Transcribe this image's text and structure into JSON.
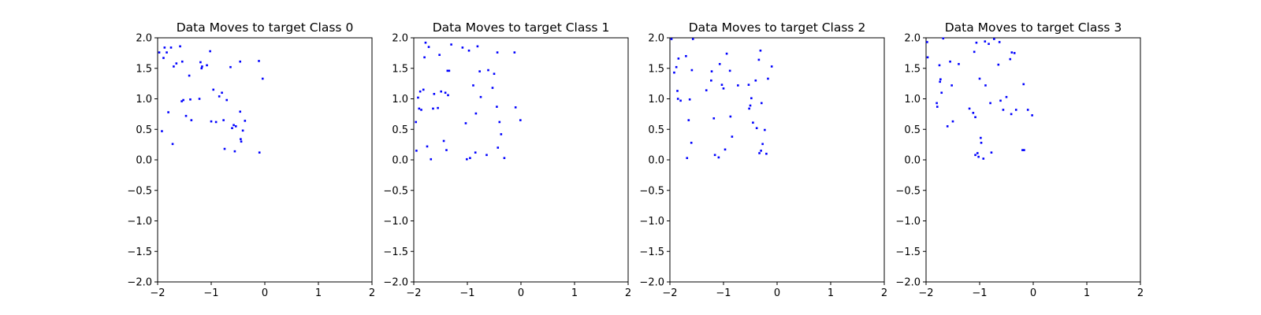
{
  "figure": {
    "point_color": "#0000ff",
    "axis_color": "#000000",
    "background": "#ffffff"
  },
  "chart_data": [
    {
      "type": "scatter",
      "title": "Data Moves to target Class 0",
      "xlabel": "",
      "ylabel": "",
      "xlim": [
        -2,
        2
      ],
      "ylim": [
        -2,
        2
      ],
      "xticks": [
        "−2",
        "−1",
        "0",
        "1",
        "2"
      ],
      "yticks": [
        "2.0",
        "1.5",
        "1.0",
        "0.5",
        "0.0",
        "−0.5",
        "−1.0",
        "−1.5",
        "−2.0"
      ],
      "grid": false,
      "points": [
        [
          -1.97,
          1.76
        ],
        [
          -1.92,
          0.47
        ],
        [
          -1.89,
          1.67
        ],
        [
          -1.87,
          1.84
        ],
        [
          -1.83,
          1.76
        ],
        [
          -1.8,
          0.78
        ],
        [
          -1.75,
          1.84
        ],
        [
          -1.72,
          0.26
        ],
        [
          -1.7,
          1.53
        ],
        [
          -1.65,
          1.58
        ],
        [
          -1.58,
          1.86
        ],
        [
          -1.55,
          0.96
        ],
        [
          -1.54,
          1.61
        ],
        [
          -1.52,
          0.98
        ],
        [
          -1.47,
          0.72
        ],
        [
          -1.41,
          1.38
        ],
        [
          -1.39,
          0.99
        ],
        [
          -1.37,
          0.65
        ],
        [
          -1.22,
          1.0
        ],
        [
          -1.2,
          1.6
        ],
        [
          -1.18,
          1.5
        ],
        [
          -1.17,
          1.53
        ],
        [
          -1.08,
          1.55
        ],
        [
          -1.02,
          1.78
        ],
        [
          -1.0,
          0.63
        ],
        [
          -0.96,
          1.15
        ],
        [
          -0.91,
          0.62
        ],
        [
          -0.85,
          1.04
        ],
        [
          -0.8,
          1.1
        ],
        [
          -0.77,
          0.65
        ],
        [
          -0.75,
          0.18
        ],
        [
          -0.71,
          0.98
        ],
        [
          -0.64,
          1.52
        ],
        [
          -0.61,
          0.52
        ],
        [
          -0.58,
          0.57
        ],
        [
          -0.56,
          0.14
        ],
        [
          -0.54,
          0.55
        ],
        [
          -0.46,
          1.61
        ],
        [
          -0.46,
          0.79
        ],
        [
          -0.45,
          0.34
        ],
        [
          -0.44,
          0.3
        ],
        [
          -0.41,
          0.48
        ],
        [
          -0.37,
          0.64
        ],
        [
          -0.11,
          1.62
        ],
        [
          -0.1,
          0.12
        ],
        [
          -0.04,
          1.33
        ]
      ]
    },
    {
      "type": "scatter",
      "title": "Data Moves to target Class 1",
      "xlabel": "",
      "ylabel": "",
      "xlim": [
        -2,
        2
      ],
      "ylim": [
        -2,
        2
      ],
      "xticks": [
        "−2",
        "−1",
        "0",
        "1",
        "2"
      ],
      "yticks": [
        "2.0",
        "1.5",
        "1.0",
        "0.5",
        "0.0",
        "−0.5",
        "−1.0",
        "−1.5",
        "−2.0"
      ],
      "grid": false,
      "points": [
        [
          -1.96,
          0.62
        ],
        [
          -1.95,
          0.15
        ],
        [
          -1.92,
          1.02
        ],
        [
          -1.9,
          0.84
        ],
        [
          -1.88,
          1.12
        ],
        [
          -1.86,
          0.82
        ],
        [
          -1.82,
          1.15
        ],
        [
          -1.8,
          1.68
        ],
        [
          -1.78,
          1.92
        ],
        [
          -1.75,
          0.22
        ],
        [
          -1.72,
          1.85
        ],
        [
          -1.68,
          0.01
        ],
        [
          -1.64,
          0.84
        ],
        [
          -1.62,
          1.08
        ],
        [
          -1.55,
          0.85
        ],
        [
          -1.52,
          1.72
        ],
        [
          -1.49,
          1.12
        ],
        [
          -1.44,
          0.31
        ],
        [
          -1.41,
          1.1
        ],
        [
          -1.39,
          0.16
        ],
        [
          -1.37,
          1.46
        ],
        [
          -1.36,
          1.06
        ],
        [
          -1.34,
          1.46
        ],
        [
          -1.3,
          1.89
        ],
        [
          -1.09,
          1.84
        ],
        [
          -1.03,
          0.6
        ],
        [
          -1.01,
          0.01
        ],
        [
          -0.97,
          1.79
        ],
        [
          -0.95,
          0.03
        ],
        [
          -0.89,
          1.22
        ],
        [
          -0.85,
          0.12
        ],
        [
          -0.84,
          0.76
        ],
        [
          -0.81,
          1.86
        ],
        [
          -0.77,
          1.45
        ],
        [
          -0.75,
          1.03
        ],
        [
          -0.64,
          0.08
        ],
        [
          -0.61,
          1.47
        ],
        [
          -0.53,
          1.18
        ],
        [
          -0.5,
          1.41
        ],
        [
          -0.45,
          0.87
        ],
        [
          -0.44,
          1.76
        ],
        [
          -0.43,
          0.2
        ],
        [
          -0.4,
          0.62
        ],
        [
          -0.37,
          0.42
        ],
        [
          -0.31,
          0.03
        ],
        [
          -0.1,
          0.86
        ],
        [
          -0.12,
          1.76
        ],
        [
          -0.01,
          0.65
        ]
      ]
    },
    {
      "type": "scatter",
      "title": "Data Moves to target Class 2",
      "xlabel": "",
      "ylabel": "",
      "xlim": [
        -2,
        2
      ],
      "ylim": [
        -2,
        2
      ],
      "xticks": [
        "−2",
        "−1",
        "0",
        "1",
        "2"
      ],
      "yticks": [
        "2.0",
        "1.5",
        "1.0",
        "0.5",
        "0.0",
        "−0.5",
        "−1.0",
        "−1.5",
        "−2.0"
      ],
      "grid": false,
      "points": [
        [
          -1.97,
          1.98
        ],
        [
          -1.92,
          1.43
        ],
        [
          -1.88,
          1.52
        ],
        [
          -1.86,
          1.13
        ],
        [
          -1.85,
          1.0
        ],
        [
          -1.84,
          1.66
        ],
        [
          -1.8,
          0.97
        ],
        [
          -1.7,
          1.7
        ],
        [
          -1.68,
          0.03
        ],
        [
          -1.65,
          0.65
        ],
        [
          -1.63,
          0.99
        ],
        [
          -1.6,
          0.28
        ],
        [
          -1.59,
          1.47
        ],
        [
          -1.57,
          1.98
        ],
        [
          -1.32,
          1.14
        ],
        [
          -1.23,
          1.3
        ],
        [
          -1.22,
          1.45
        ],
        [
          -1.18,
          0.68
        ],
        [
          -1.16,
          0.08
        ],
        [
          -1.09,
          0.04
        ],
        [
          -1.07,
          1.57
        ],
        [
          -1.03,
          1.23
        ],
        [
          -1.0,
          1.17
        ],
        [
          -0.97,
          0.17
        ],
        [
          -0.94,
          1.74
        ],
        [
          -0.88,
          1.46
        ],
        [
          -0.87,
          0.71
        ],
        [
          -0.84,
          0.38
        ],
        [
          -0.73,
          1.22
        ],
        [
          -0.53,
          1.23
        ],
        [
          -0.52,
          0.84
        ],
        [
          -0.5,
          0.89
        ],
        [
          -0.48,
          1.01
        ],
        [
          -0.45,
          0.61
        ],
        [
          -0.4,
          1.3
        ],
        [
          -0.38,
          0.52
        ],
        [
          -0.34,
          1.64
        ],
        [
          -0.33,
          0.11
        ],
        [
          -0.31,
          1.79
        ],
        [
          -0.3,
          0.15
        ],
        [
          -0.29,
          0.93
        ],
        [
          -0.27,
          0.26
        ],
        [
          -0.23,
          0.49
        ],
        [
          -0.2,
          0.1
        ],
        [
          -0.17,
          1.33
        ],
        [
          -0.1,
          1.53
        ]
      ]
    },
    {
      "type": "scatter",
      "title": "Data Moves to target Class 3",
      "xlabel": "",
      "ylabel": "",
      "xlim": [
        -2,
        2
      ],
      "ylim": [
        -2,
        2
      ],
      "xticks": [
        "−2",
        "−1",
        "0",
        "1",
        "2"
      ],
      "yticks": [
        "2.0",
        "1.5",
        "1.0",
        "0.5",
        "0.0",
        "−0.5",
        "−1.0",
        "−1.5",
        "−2.0"
      ],
      "grid": false,
      "points": [
        [
          -1.98,
          1.93
        ],
        [
          -1.97,
          1.68
        ],
        [
          -1.8,
          0.93
        ],
        [
          -1.79,
          0.87
        ],
        [
          -1.75,
          1.55
        ],
        [
          -1.74,
          1.28
        ],
        [
          -1.73,
          1.32
        ],
        [
          -1.71,
          1.1
        ],
        [
          -1.68,
          1.99
        ],
        [
          -1.6,
          0.55
        ],
        [
          -1.55,
          1.61
        ],
        [
          -1.52,
          1.22
        ],
        [
          -1.5,
          0.63
        ],
        [
          -1.39,
          1.57
        ],
        [
          -1.19,
          0.84
        ],
        [
          -1.12,
          0.77
        ],
        [
          -1.1,
          1.77
        ],
        [
          -1.08,
          0.7
        ],
        [
          -1.08,
          0.08
        ],
        [
          -1.06,
          1.92
        ],
        [
          -1.04,
          0.11
        ],
        [
          -1.02,
          0.05
        ],
        [
          -1.0,
          1.33
        ],
        [
          -0.98,
          0.36
        ],
        [
          -0.97,
          0.28
        ],
        [
          -0.93,
          0.02
        ],
        [
          -0.9,
          1.94
        ],
        [
          -0.89,
          1.22
        ],
        [
          -0.83,
          1.9
        ],
        [
          -0.8,
          0.93
        ],
        [
          -0.78,
          0.12
        ],
        [
          -0.73,
          1.98
        ],
        [
          -0.65,
          1.56
        ],
        [
          -0.63,
          1.93
        ],
        [
          -0.61,
          0.97
        ],
        [
          -0.56,
          0.82
        ],
        [
          -0.5,
          1.03
        ],
        [
          -0.43,
          1.65
        ],
        [
          -0.4,
          1.76
        ],
        [
          -0.41,
          0.75
        ],
        [
          -0.35,
          1.75
        ],
        [
          -0.32,
          0.82
        ],
        [
          -0.2,
          0.16
        ],
        [
          -0.18,
          1.24
        ],
        [
          -0.17,
          0.16
        ],
        [
          -0.1,
          0.82
        ],
        [
          -0.02,
          0.73
        ]
      ]
    }
  ]
}
